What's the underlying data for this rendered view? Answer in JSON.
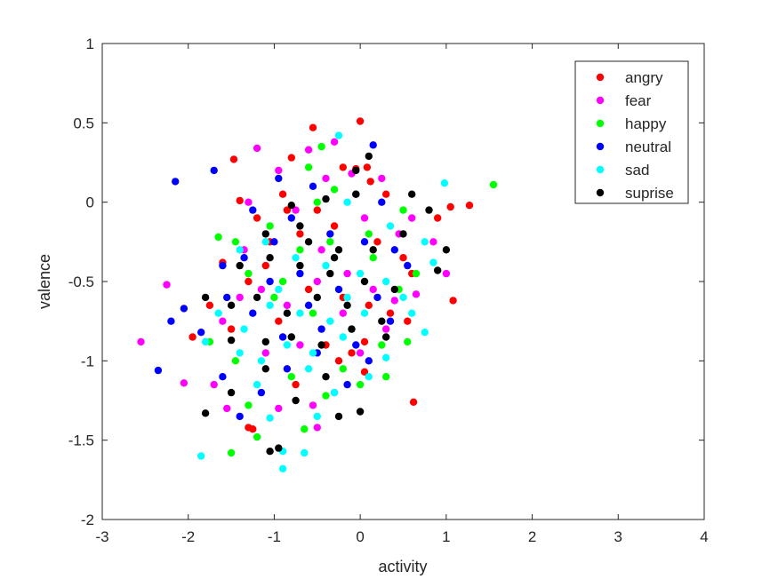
{
  "chart_data": {
    "type": "scatter",
    "title": "",
    "xlabel": "activity",
    "ylabel": "valence",
    "xlim": [
      -3,
      4
    ],
    "ylim": [
      -2,
      1
    ],
    "xticks": [
      -3,
      -2,
      -1,
      0,
      1,
      2,
      3,
      4
    ],
    "yticks": [
      -2,
      -1.5,
      -1,
      -0.5,
      0,
      0.5,
      1
    ],
    "xtick_labels": [
      "-3",
      "-2",
      "-1",
      "0",
      "1",
      "2",
      "3",
      "4"
    ],
    "ytick_labels": [
      "-2",
      "-1.5",
      "-1",
      "-0.5",
      "0",
      "0.5",
      "1"
    ],
    "grid": false,
    "legend_position": "top-right",
    "series": [
      {
        "name": "angry",
        "color": "#ff0000",
        "points": [
          [
            0.0,
            0.51
          ],
          [
            -0.55,
            0.47
          ],
          [
            -1.47,
            0.27
          ],
          [
            -0.8,
            0.28
          ],
          [
            -0.2,
            0.22
          ],
          [
            -0.05,
            0.21
          ],
          [
            0.08,
            0.22
          ],
          [
            0.12,
            0.13
          ],
          [
            0.3,
            0.05
          ],
          [
            0.9,
            -0.1
          ],
          [
            1.05,
            -0.03
          ],
          [
            1.27,
            -0.02
          ],
          [
            -1.4,
            0.01
          ],
          [
            -0.5,
            -0.05
          ],
          [
            -1.2,
            -0.1
          ],
          [
            -0.9,
            0.05
          ],
          [
            -0.7,
            -0.2
          ],
          [
            -0.3,
            -0.15
          ],
          [
            0.2,
            -0.25
          ],
          [
            0.5,
            -0.35
          ],
          [
            0.6,
            -0.45
          ],
          [
            -1.6,
            -0.38
          ],
          [
            -1.3,
            -0.5
          ],
          [
            -1.1,
            -0.4
          ],
          [
            -0.6,
            -0.55
          ],
          [
            -0.2,
            -0.6
          ],
          [
            0.1,
            -0.65
          ],
          [
            0.35,
            -0.7
          ],
          [
            -1.75,
            -0.65
          ],
          [
            -1.95,
            -0.85
          ],
          [
            -1.5,
            -0.8
          ],
          [
            -0.95,
            -0.75
          ],
          [
            -0.4,
            -0.9
          ],
          [
            0.05,
            -0.88
          ],
          [
            -0.25,
            -1.0
          ],
          [
            0.55,
            -0.75
          ],
          [
            1.08,
            -0.62
          ],
          [
            0.62,
            -1.26
          ],
          [
            -1.25,
            -1.43
          ],
          [
            -1.3,
            -1.42
          ],
          [
            -0.75,
            -1.15
          ],
          [
            0.05,
            -1.07
          ],
          [
            -0.1,
            -0.95
          ],
          [
            -0.85,
            -0.05
          ],
          [
            -1.05,
            -0.25
          ]
        ]
      },
      {
        "name": "fear",
        "color": "#ff00ff",
        "points": [
          [
            -0.3,
            0.38
          ],
          [
            -0.6,
            0.33
          ],
          [
            -1.2,
            0.34
          ],
          [
            -0.95,
            0.2
          ],
          [
            -0.4,
            0.15
          ],
          [
            -0.1,
            0.18
          ],
          [
            0.25,
            0.15
          ],
          [
            -1.3,
            0.0
          ],
          [
            -0.75,
            -0.05
          ],
          [
            0.05,
            -0.1
          ],
          [
            0.45,
            -0.2
          ],
          [
            0.85,
            -0.25
          ],
          [
            1.0,
            -0.45
          ],
          [
            -2.55,
            -0.88
          ],
          [
            -2.25,
            -0.52
          ],
          [
            -2.05,
            -1.14
          ],
          [
            -1.7,
            -1.15
          ],
          [
            -1.6,
            -0.75
          ],
          [
            -1.4,
            -0.6
          ],
          [
            -1.15,
            -0.55
          ],
          [
            -0.85,
            -0.65
          ],
          [
            -0.5,
            -0.5
          ],
          [
            -0.15,
            -0.45
          ],
          [
            0.15,
            -0.55
          ],
          [
            0.4,
            -0.62
          ],
          [
            0.65,
            -0.58
          ],
          [
            -1.55,
            -1.3
          ],
          [
            -0.95,
            -1.3
          ],
          [
            -0.55,
            -1.28
          ],
          [
            -0.5,
            -1.42
          ],
          [
            -0.3,
            -1.2
          ],
          [
            0.0,
            -0.95
          ],
          [
            0.3,
            -0.8
          ],
          [
            -1.1,
            -0.95
          ],
          [
            -0.7,
            -0.9
          ],
          [
            -0.2,
            -0.7
          ],
          [
            -1.35,
            -0.3
          ],
          [
            -0.45,
            -0.3
          ],
          [
            0.6,
            -0.1
          ]
        ]
      },
      {
        "name": "happy",
        "color": "#00ff00",
        "points": [
          [
            -0.45,
            0.35
          ],
          [
            -0.6,
            0.22
          ],
          [
            -0.3,
            0.08
          ],
          [
            1.55,
            0.11
          ],
          [
            0.5,
            -0.05
          ],
          [
            0.65,
            -0.45
          ],
          [
            -1.65,
            -0.22
          ],
          [
            -1.45,
            -0.25
          ],
          [
            -1.05,
            -0.15
          ],
          [
            -0.7,
            -0.3
          ],
          [
            -0.35,
            -0.25
          ],
          [
            0.15,
            -0.35
          ],
          [
            0.45,
            -0.55
          ],
          [
            -1.3,
            -0.45
          ],
          [
            -1.0,
            -0.6
          ],
          [
            -0.55,
            -0.7
          ],
          [
            -0.1,
            -0.8
          ],
          [
            0.25,
            -0.9
          ],
          [
            0.55,
            -0.88
          ],
          [
            -1.75,
            -0.88
          ],
          [
            -1.45,
            -1.0
          ],
          [
            -1.3,
            -1.28
          ],
          [
            -1.5,
            -1.58
          ],
          [
            -1.2,
            -1.48
          ],
          [
            -0.65,
            -1.43
          ],
          [
            -0.4,
            -1.22
          ],
          [
            0.0,
            -1.15
          ],
          [
            -0.8,
            -1.1
          ],
          [
            -0.2,
            -1.05
          ],
          [
            0.3,
            -1.1
          ],
          [
            -0.9,
            -0.5
          ],
          [
            0.1,
            -0.2
          ],
          [
            -0.5,
            0.0
          ]
        ]
      },
      {
        "name": "neutral",
        "color": "#0000ff",
        "points": [
          [
            -2.15,
            0.13
          ],
          [
            -1.7,
            0.2
          ],
          [
            0.15,
            0.36
          ],
          [
            -0.95,
            0.15
          ],
          [
            -0.55,
            0.1
          ],
          [
            -0.05,
            0.05
          ],
          [
            0.25,
            0.0
          ],
          [
            -1.25,
            -0.05
          ],
          [
            -0.8,
            -0.1
          ],
          [
            -0.35,
            -0.2
          ],
          [
            0.05,
            -0.25
          ],
          [
            0.4,
            -0.3
          ],
          [
            -1.6,
            -0.4
          ],
          [
            -1.35,
            -0.35
          ],
          [
            -1.05,
            -0.5
          ],
          [
            -0.7,
            -0.45
          ],
          [
            -0.25,
            -0.55
          ],
          [
            0.2,
            -0.6
          ],
          [
            -2.2,
            -0.75
          ],
          [
            -2.05,
            -0.67
          ],
          [
            -1.85,
            -0.82
          ],
          [
            -1.55,
            -0.6
          ],
          [
            -1.25,
            -0.7
          ],
          [
            -0.9,
            -0.85
          ],
          [
            -0.45,
            -0.8
          ],
          [
            -0.05,
            -0.9
          ],
          [
            0.35,
            -0.75
          ],
          [
            -2.35,
            -1.06
          ],
          [
            -1.6,
            -1.1
          ],
          [
            -1.15,
            -1.2
          ],
          [
            -0.85,
            -1.05
          ],
          [
            -0.5,
            -0.95
          ],
          [
            -0.15,
            -1.15
          ],
          [
            0.1,
            -1.0
          ],
          [
            -1.0,
            -0.25
          ],
          [
            -0.6,
            -0.65
          ],
          [
            0.55,
            -0.4
          ],
          [
            -1.4,
            -1.35
          ]
        ]
      },
      {
        "name": "sad",
        "color": "#00ffff",
        "points": [
          [
            -0.25,
            0.42
          ],
          [
            0.98,
            0.12
          ],
          [
            -0.15,
            0.0
          ],
          [
            0.35,
            -0.15
          ],
          [
            0.75,
            -0.25
          ],
          [
            0.85,
            -0.38
          ],
          [
            -1.4,
            -0.3
          ],
          [
            -1.1,
            -0.25
          ],
          [
            -0.75,
            -0.35
          ],
          [
            -0.4,
            -0.4
          ],
          [
            0.0,
            -0.45
          ],
          [
            0.3,
            -0.5
          ],
          [
            0.6,
            -0.7
          ],
          [
            0.75,
            -0.82
          ],
          [
            -1.65,
            -0.7
          ],
          [
            -1.35,
            -0.8
          ],
          [
            -1.05,
            -0.65
          ],
          [
            -0.7,
            -0.7
          ],
          [
            -0.35,
            -0.75
          ],
          [
            0.05,
            -0.7
          ],
          [
            -1.8,
            -0.88
          ],
          [
            -1.4,
            -0.95
          ],
          [
            -1.15,
            -1.0
          ],
          [
            -0.85,
            -0.9
          ],
          [
            -0.55,
            -0.95
          ],
          [
            -0.2,
            -0.85
          ],
          [
            0.3,
            -0.98
          ],
          [
            -1.85,
            -1.6
          ],
          [
            -1.05,
            -1.36
          ],
          [
            -0.9,
            -1.57
          ],
          [
            -0.9,
            -1.68
          ],
          [
            -0.65,
            -1.58
          ],
          [
            -0.5,
            -1.35
          ],
          [
            -0.3,
            -1.2
          ],
          [
            0.1,
            -1.1
          ],
          [
            -1.2,
            -1.15
          ],
          [
            -0.6,
            -1.05
          ],
          [
            -0.95,
            -0.55
          ],
          [
            -0.15,
            -0.6
          ],
          [
            0.5,
            -0.6
          ]
        ]
      },
      {
        "name": "suprise",
        "color": "#000000",
        "points": [
          [
            0.1,
            0.29
          ],
          [
            -0.05,
            0.2
          ],
          [
            0.6,
            0.05
          ],
          [
            0.8,
            -0.05
          ],
          [
            0.5,
            -0.2
          ],
          [
            1.0,
            -0.3
          ],
          [
            0.9,
            -0.43
          ],
          [
            -0.05,
            0.05
          ],
          [
            -0.4,
            0.02
          ],
          [
            -0.8,
            -0.02
          ],
          [
            -1.1,
            -0.2
          ],
          [
            -0.6,
            -0.25
          ],
          [
            -0.25,
            -0.3
          ],
          [
            0.15,
            -0.3
          ],
          [
            -1.4,
            -0.4
          ],
          [
            -1.05,
            -0.35
          ],
          [
            -0.7,
            -0.4
          ],
          [
            -0.35,
            -0.45
          ],
          [
            0.05,
            -0.5
          ],
          [
            0.4,
            -0.55
          ],
          [
            -1.8,
            -0.6
          ],
          [
            -1.5,
            -0.65
          ],
          [
            -1.2,
            -0.6
          ],
          [
            -0.85,
            -0.7
          ],
          [
            -0.5,
            -0.6
          ],
          [
            -0.15,
            -0.65
          ],
          [
            0.25,
            -0.75
          ],
          [
            -1.5,
            -0.87
          ],
          [
            -1.1,
            -0.88
          ],
          [
            -0.8,
            -0.85
          ],
          [
            -0.45,
            -0.9
          ],
          [
            -0.1,
            -0.8
          ],
          [
            0.3,
            -0.85
          ],
          [
            -1.8,
            -1.33
          ],
          [
            -1.5,
            -1.2
          ],
          [
            -1.1,
            -1.05
          ],
          [
            -0.75,
            -1.25
          ],
          [
            -0.4,
            -1.1
          ],
          [
            -0.25,
            -1.35
          ],
          [
            0.0,
            -1.32
          ],
          [
            -1.05,
            -1.57
          ],
          [
            -0.95,
            -1.55
          ],
          [
            -0.7,
            -0.15
          ],
          [
            -0.3,
            -0.35
          ]
        ]
      }
    ]
  }
}
